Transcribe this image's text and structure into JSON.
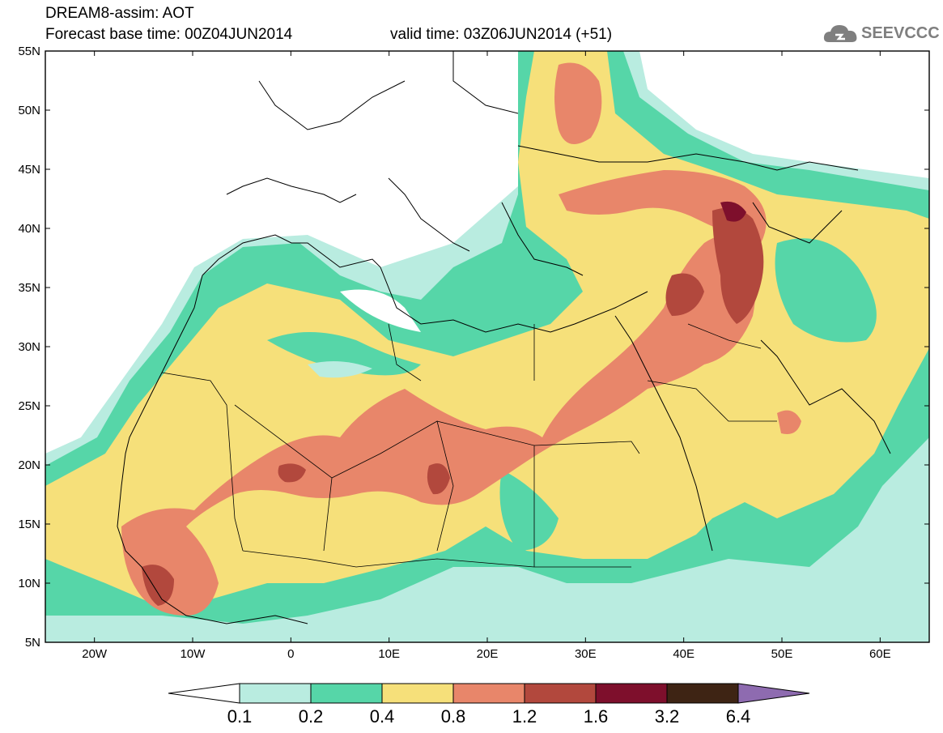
{
  "header": {
    "title_line1": "DREAM8-assim: AOT",
    "title_line2_base": "Forecast base time: 00Z04JUN2014",
    "title_line2_valid": "valid time: 03Z06JUN2014 (+51)",
    "logo_text": "SEEVCCC"
  },
  "map": {
    "lon_range": [
      -25,
      65
    ],
    "lat_range": [
      5,
      55
    ],
    "lat_ticks": [
      "5N",
      "10N",
      "15N",
      "20N",
      "25N",
      "30N",
      "35N",
      "40N",
      "45N",
      "50N",
      "55N"
    ],
    "lon_ticks": [
      "20W",
      "10W",
      "0",
      "10E",
      "20E",
      "30E",
      "40E",
      "50E",
      "60E"
    ]
  },
  "colorbar": {
    "levels": [
      "0.1",
      "0.2",
      "0.4",
      "0.8",
      "1.2",
      "1.6",
      "3.2",
      "6.4"
    ],
    "colors": [
      "#b9ece0",
      "#56d6a8",
      "#f6e07a",
      "#e8866a",
      "#b2483d",
      "#7e0f2c",
      "#3e2414",
      "#8e6bb0"
    ]
  }
}
